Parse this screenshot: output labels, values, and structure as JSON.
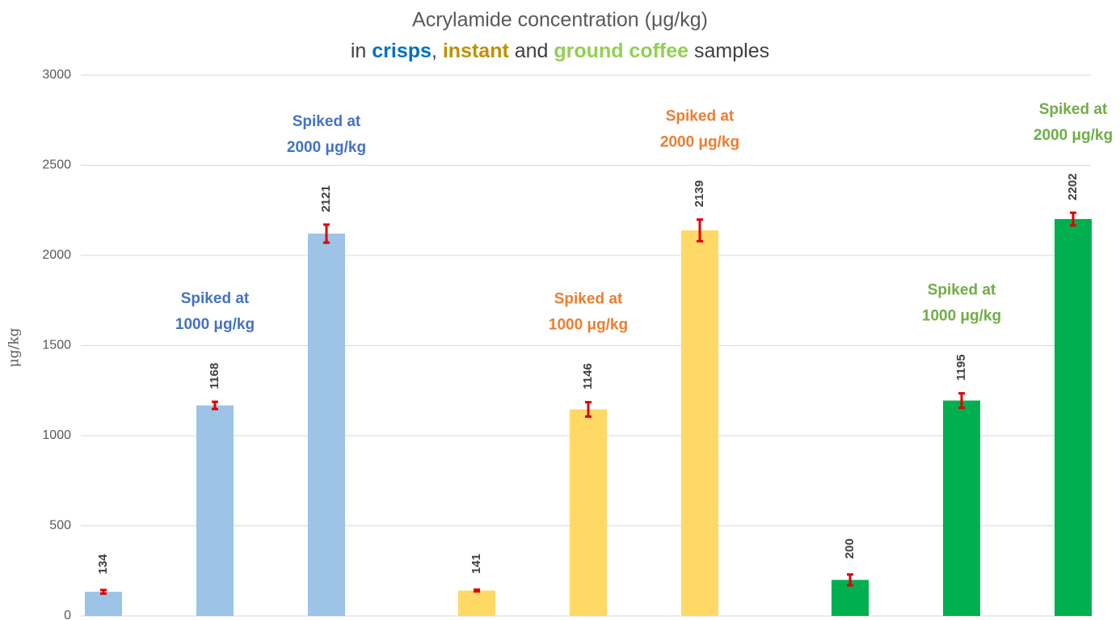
{
  "chart_data": {
    "type": "bar",
    "title": "Acrylamide concentration (μg/kg)",
    "subtitle_parts": [
      {
        "text": "in ",
        "color": "#404040",
        "bold": false
      },
      {
        "text": "crisps",
        "color": "#0070c0",
        "bold": true
      },
      {
        "text": ", ",
        "color": "#404040",
        "bold": false
      },
      {
        "text": "instant",
        "color": "#bf9000",
        "bold": true
      },
      {
        "text": " and ",
        "color": "#404040",
        "bold": false
      },
      {
        "text": "ground coffee",
        "color": "#92d050",
        "bold": true
      },
      {
        "text": " samples",
        "color": "#404040",
        "bold": false
      }
    ],
    "ylabel": "μg/kg",
    "categories": [
      null,
      null,
      null,
      null,
      null,
      null,
      null,
      null,
      null
    ],
    "values": [
      134,
      1168,
      2121,
      141,
      1146,
      2139,
      200,
      1195,
      2202
    ],
    "errors": [
      10,
      20,
      50,
      5,
      40,
      60,
      30,
      40,
      35
    ],
    "colors": [
      "#9dc3e6",
      "#9dc3e6",
      "#9dc3e6",
      "#ffd966",
      "#ffd966",
      "#ffd966",
      "#00b050",
      "#00b050",
      "#00b050"
    ],
    "error_color": "#e00000",
    "annotations": [
      {
        "lines": [
          "Spiked at",
          "1000 μg/kg"
        ],
        "color": "#4472c4"
      },
      {
        "lines": [
          "Spiked at",
          "2000 μg/kg"
        ],
        "color": "#4472c4"
      },
      {
        "lines": [
          "Spiked at",
          "1000 μg/kg"
        ],
        "color": "#ed7d31"
      },
      {
        "lines": [
          "Spiked at",
          "2000 μg/kg"
        ],
        "color": "#ed7d31"
      },
      {
        "lines": [
          "Spiked at",
          "1000 μg/kg"
        ],
        "color": "#70ad47"
      },
      {
        "lines": [
          "Spiked at",
          "2000 μg/kg"
        ],
        "color": "#70ad47"
      }
    ],
    "ylim": [
      0,
      3000
    ],
    "yticks": [
      0,
      500,
      1000,
      1500,
      2000,
      2500,
      3000
    ],
    "grid": true
  }
}
